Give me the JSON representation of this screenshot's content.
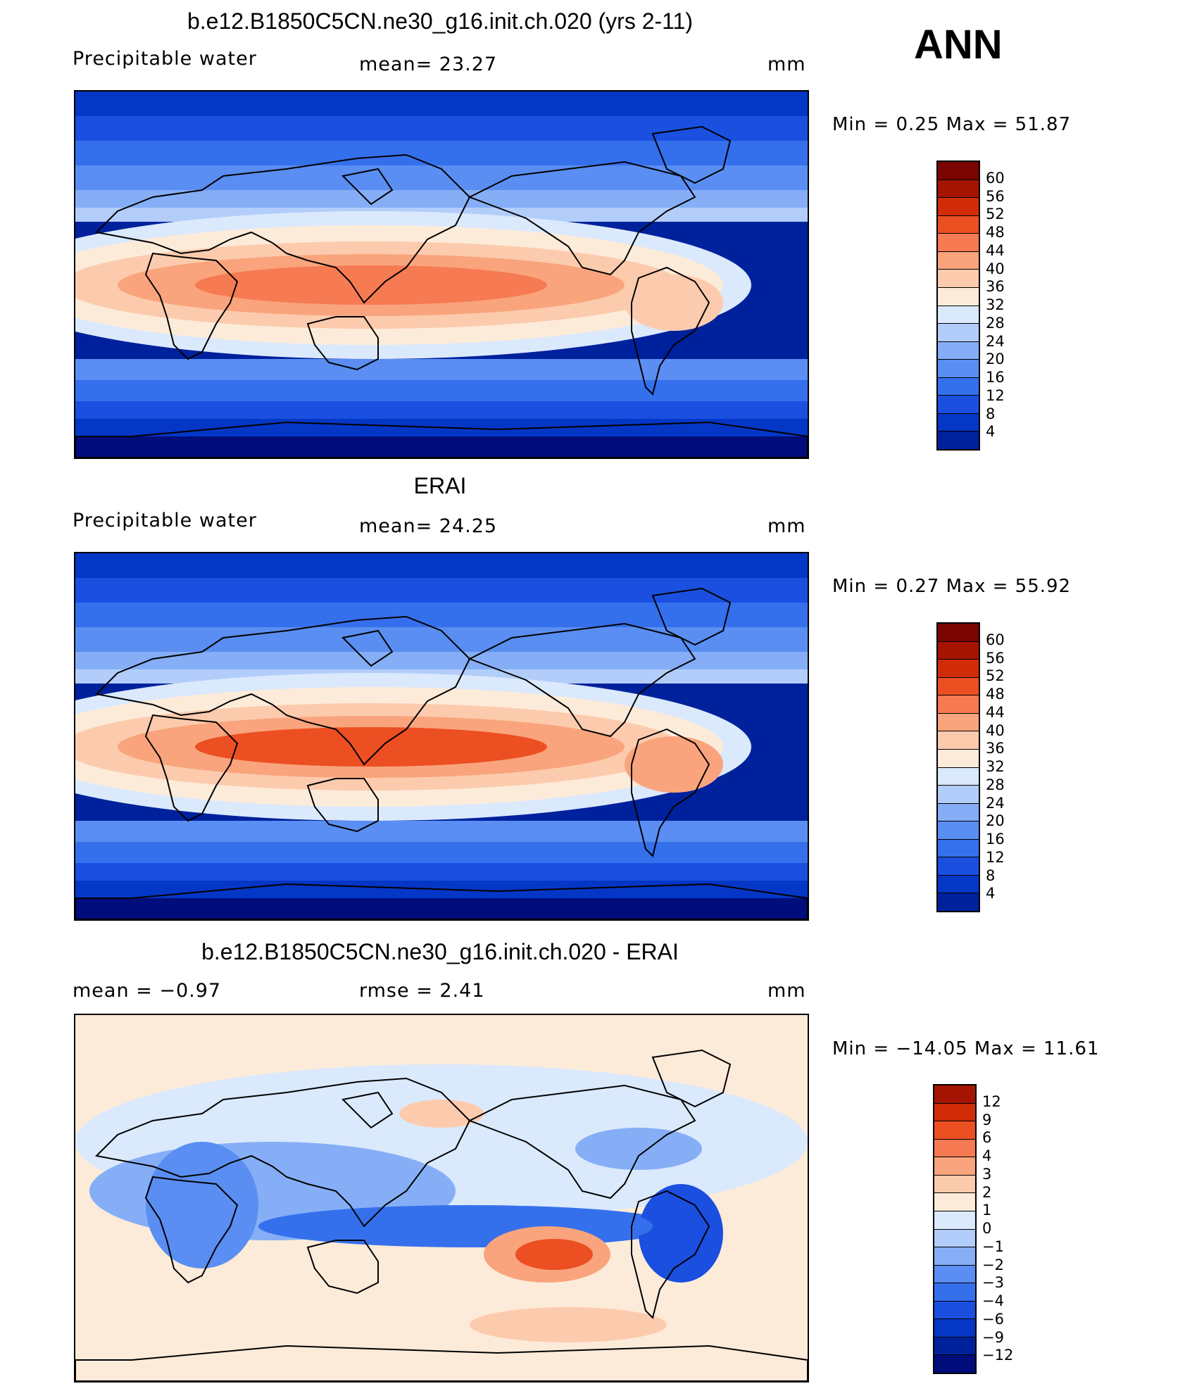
{
  "season": "ANN",
  "panels": [
    {
      "title": "b.e12.B1850C5CN.ne30_g16.init.ch.020 (yrs 2-11)",
      "left_label": "Precipitable  water",
      "center_label": "mean=   23.27",
      "right_label": "mm",
      "minmax": "Min  =     0.25  Max  =    51.87",
      "colorbar_labels": [
        "60",
        "56",
        "52",
        "48",
        "44",
        "40",
        "36",
        "32",
        "28",
        "24",
        "20",
        "16",
        "12",
        "8",
        "4"
      ],
      "field_mean": 23.27
    },
    {
      "title": "ERAI",
      "left_label": "Precipitable  water",
      "center_label": "mean=   24.25",
      "right_label": "mm",
      "minmax": "Min  =     0.27  Max  =    55.92",
      "colorbar_labels": [
        "60",
        "56",
        "52",
        "48",
        "44",
        "40",
        "36",
        "32",
        "28",
        "24",
        "20",
        "16",
        "12",
        "8",
        "4"
      ],
      "field_mean": 24.25
    },
    {
      "title": "b.e12.B1850C5CN.ne30_g16.init.ch.020 - ERAI",
      "left_label": "mean  =    −0.97",
      "center_label": "rmse  =     2.41",
      "right_label": "mm",
      "minmax": "Min  =  −14.05  Max  =    11.61",
      "colorbar_labels": [
        "12",
        "9",
        "6",
        "4",
        "3",
        "2",
        "1",
        "0",
        "−1",
        "−2",
        "−3",
        "−4",
        "−6",
        "−9",
        "−12"
      ],
      "field_mean": -0.97
    }
  ],
  "colors": {
    "field_scale": [
      "#000d7a",
      "#00219c",
      "#0537c6",
      "#1a4fe0",
      "#3570ec",
      "#5a8ef2",
      "#85aef6",
      "#b3cdfa",
      "#dbe9fd",
      "#fdebd9",
      "#fccbad",
      "#f9a47d",
      "#f67a52",
      "#ec4f22",
      "#d12c08",
      "#a51402",
      "#790400"
    ],
    "diff_scale": [
      "#000d7a",
      "#00219c",
      "#0537c6",
      "#1a4fe0",
      "#3570ec",
      "#5a8ef2",
      "#85aef6",
      "#b3cdfa",
      "#dbe9fd",
      "#fdebd9",
      "#fccbad",
      "#f9a47d",
      "#f67a52",
      "#ec4f22",
      "#d12c08",
      "#a51402"
    ],
    "coast": "#000000"
  }
}
